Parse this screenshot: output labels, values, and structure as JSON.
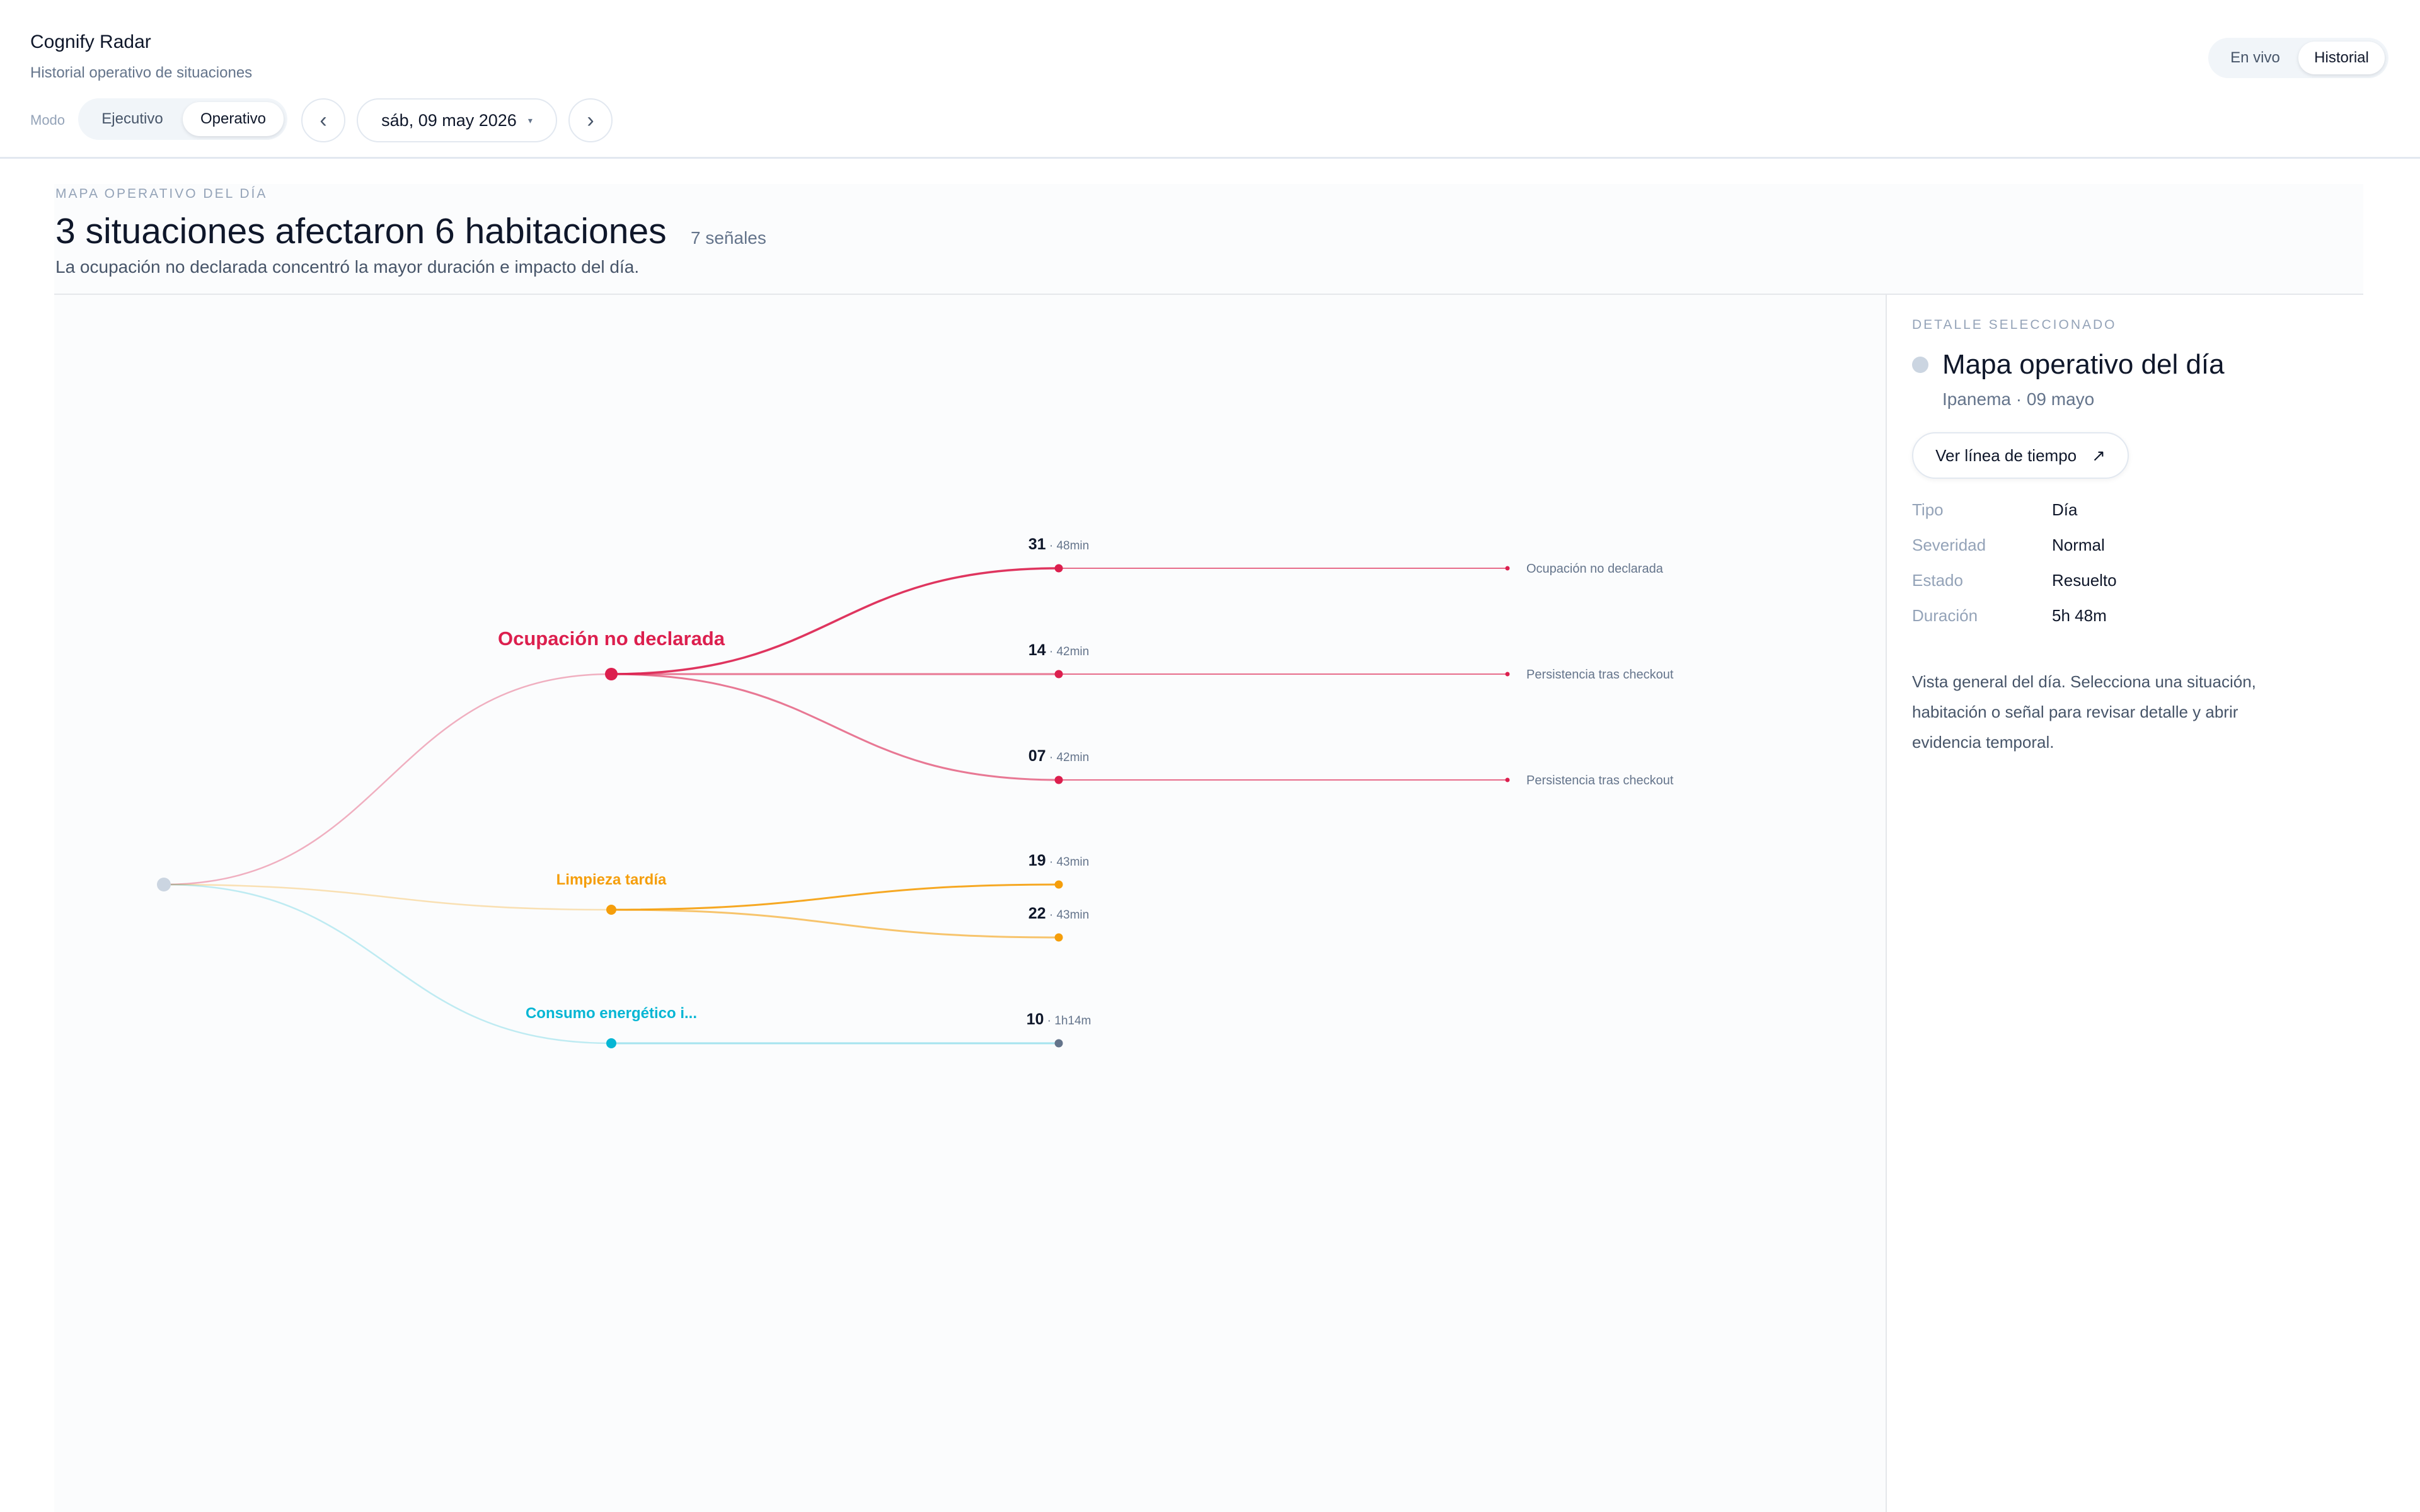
{
  "app": {
    "title": "Cognify Radar",
    "subtitle": "Historial operativo de situaciones"
  },
  "toolbar": {
    "mode_label": "Modo",
    "modes": [
      "Ejecutivo",
      "Operativo"
    ],
    "active_mode": "Operativo",
    "prev_icon": "chevron-left-icon",
    "next_icon": "chevron-right-icon",
    "prev_label": "‹",
    "next_label": "›",
    "date": "sáb, 09 may 2026",
    "date_caret": "▾",
    "views": [
      "En vivo",
      "Historial"
    ],
    "active_view": "Historial"
  },
  "map": {
    "eyebrow": "MAPA OPERATIVO DEL DÍA",
    "headline": "3 situaciones afectaron 6 habitaciones",
    "signals": "7 señales",
    "summary": "La ocupación no declarada concentró la mayor duración e impacto del día.",
    "situations": [
      {
        "label": "Ocupación no declarada",
        "color": "#dc1f4e",
        "rooms": [
          {
            "room": "31",
            "duration": "48min",
            "signal": "Ocupación no declarada"
          },
          {
            "room": "14",
            "duration": "42min",
            "signal": "Persistencia tras checkout"
          },
          {
            "room": "07",
            "duration": "42min",
            "signal": "Persistencia tras checkout"
          }
        ]
      },
      {
        "label": "Limpieza tardía",
        "color": "#f59e0b",
        "rooms": [
          {
            "room": "19",
            "duration": "43min",
            "signal": ""
          },
          {
            "room": "22",
            "duration": "43min",
            "signal": ""
          }
        ]
      },
      {
        "label": "Consumo energético i...",
        "color": "#06b6d4",
        "rooms": [
          {
            "room": "10",
            "duration": "1h14m",
            "signal": ""
          }
        ]
      }
    ]
  },
  "detail": {
    "eyebrow": "DETALLE SELECCIONADO",
    "title": "Mapa operativo del día",
    "subtitle": "Ipanema · 09 mayo",
    "button": "Ver línea de tiempo",
    "button_icon": "arrow-up-right-icon",
    "button_glyph": "↗",
    "fields": [
      {
        "key": "Tipo",
        "value": "Día"
      },
      {
        "key": "Severidad",
        "value": "Normal"
      },
      {
        "key": "Estado",
        "value": "Resuelto"
      },
      {
        "key": "Duración",
        "value": "5h 48m"
      }
    ],
    "description": "Vista general del día. Selecciona una situación, habitación o señal para revisar detalle y abrir evidencia temporal."
  }
}
